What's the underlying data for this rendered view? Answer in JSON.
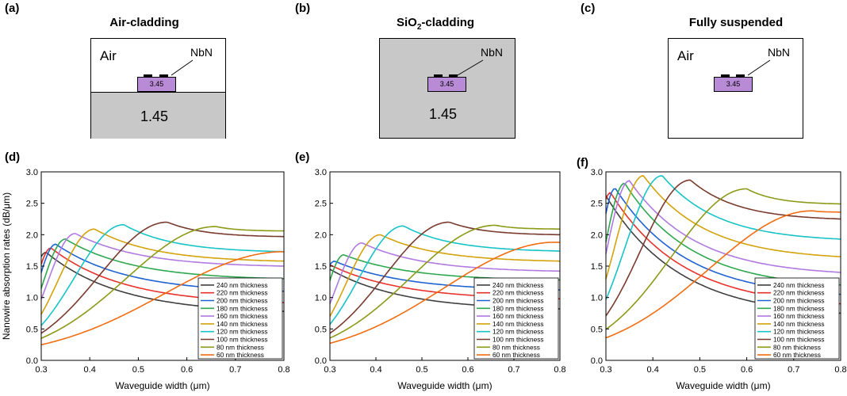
{
  "panels": {
    "a": {
      "label": "(a)",
      "title": "Air-cladding",
      "top_text": "Air",
      "nbn": "NbN",
      "core": "3.45",
      "substrate": "1.45"
    },
    "b": {
      "label": "(b)",
      "title_main": "SiO",
      "title_sub": "2",
      "title_rest": "-cladding",
      "nbn": "NbN",
      "core": "3.45",
      "substrate": "1.45"
    },
    "c": {
      "label": "(c)",
      "title": "Fully suspended",
      "top_text": "Air",
      "nbn": "NbN",
      "core": "3.45"
    },
    "d": {
      "label": "(d)"
    },
    "e": {
      "label": "(e)"
    },
    "f": {
      "label": "(f)"
    }
  },
  "colors": {
    "cladding_gray": "#c8c8c8",
    "core_purple": "#b98ad6",
    "nbn_black": "#000000"
  },
  "chart_data": [
    {
      "panel": "d",
      "type": "line",
      "xlabel": "Waveguide width (μm)",
      "ylabel": "Nanowire absorption rates (dB/μm)",
      "xlim": [
        0.3,
        0.8
      ],
      "ylim": [
        0,
        3.0
      ],
      "xticks": [
        "0.3",
        "0.4",
        "0.5",
        "0.6",
        "0.7",
        "0.8"
      ],
      "yticks": [
        "0.0",
        "0.5",
        "1.0",
        "1.5",
        "2.0",
        "2.5",
        "3.0"
      ],
      "legend": "bottom-right",
      "series": [
        {
          "name": "240 nm thickness",
          "color": "#404040",
          "peak_x": 0.31,
          "peak_y": 1.72,
          "end_y": 0.78
        },
        {
          "name": "220 nm thickness",
          "color": "#e8312a",
          "peak_x": 0.32,
          "peak_y": 1.79,
          "end_y": 0.92
        },
        {
          "name": "200 nm thickness",
          "color": "#1f63d1",
          "peak_x": 0.33,
          "peak_y": 1.85,
          "end_y": 1.1
        },
        {
          "name": "180 nm thickness",
          "color": "#2ea84f",
          "peak_x": 0.35,
          "peak_y": 1.93,
          "end_y": 1.3
        },
        {
          "name": "160 nm thickness",
          "color": "#b07ae0",
          "peak_x": 0.37,
          "peak_y": 2.02,
          "end_y": 1.5
        },
        {
          "name": "140 nm thickness",
          "color": "#d4a20b",
          "peak_x": 0.41,
          "peak_y": 2.09,
          "end_y": 1.58
        },
        {
          "name": "120 nm thickness",
          "color": "#17c3c7",
          "peak_x": 0.47,
          "peak_y": 2.16,
          "end_y": 1.73
        },
        {
          "name": "100 nm thickness",
          "color": "#7a3b2e",
          "peak_x": 0.56,
          "peak_y": 2.2,
          "end_y": 1.97
        },
        {
          "name": "80 nm thickness",
          "color": "#8c9a16",
          "peak_x": 0.66,
          "peak_y": 2.13,
          "end_y": 2.06
        },
        {
          "name": "60 nm thickness",
          "color": "#f26d12",
          "peak_x": 0.8,
          "peak_y": 1.73,
          "end_y": 1.73
        }
      ]
    },
    {
      "panel": "e",
      "type": "line",
      "xlabel": "Waveguide width (μm)",
      "ylabel": "",
      "xlim": [
        0.3,
        0.8
      ],
      "ylim": [
        0,
        3.0
      ],
      "xticks": [
        "0.3",
        "0.4",
        "0.5",
        "0.6",
        "0.7",
        "0.8"
      ],
      "yticks": [
        "0.0",
        "0.5",
        "1.0",
        "1.5",
        "2.0",
        "2.5",
        "3.0"
      ],
      "legend": "bottom-right",
      "series": [
        {
          "name": "240 nm thickness",
          "color": "#404040",
          "peak_x": 0.3,
          "peak_y": 1.45,
          "end_y": 0.82
        },
        {
          "name": "220 nm thickness",
          "color": "#e8312a",
          "peak_x": 0.3,
          "peak_y": 1.52,
          "end_y": 0.98
        },
        {
          "name": "200 nm thickness",
          "color": "#1f63d1",
          "peak_x": 0.31,
          "peak_y": 1.58,
          "end_y": 1.12
        },
        {
          "name": "180 nm thickness",
          "color": "#2ea84f",
          "peak_x": 0.33,
          "peak_y": 1.68,
          "end_y": 1.28
        },
        {
          "name": "160 nm thickness",
          "color": "#b07ae0",
          "peak_x": 0.37,
          "peak_y": 1.87,
          "end_y": 1.42
        },
        {
          "name": "140 nm thickness",
          "color": "#d4a20b",
          "peak_x": 0.41,
          "peak_y": 2.0,
          "end_y": 1.58
        },
        {
          "name": "120 nm thickness",
          "color": "#17c3c7",
          "peak_x": 0.46,
          "peak_y": 2.14,
          "end_y": 1.74
        },
        {
          "name": "100 nm thickness",
          "color": "#7a3b2e",
          "peak_x": 0.56,
          "peak_y": 2.2,
          "end_y": 2.0
        },
        {
          "name": "80 nm thickness",
          "color": "#8c9a16",
          "peak_x": 0.66,
          "peak_y": 2.15,
          "end_y": 2.09
        },
        {
          "name": "60 nm thickness",
          "color": "#f26d12",
          "peak_x": 0.79,
          "peak_y": 1.88,
          "end_y": 1.88
        }
      ]
    },
    {
      "panel": "f",
      "type": "line",
      "xlabel": "Waveguide width (μm)",
      "ylabel": "",
      "xlim": [
        0.3,
        0.8
      ],
      "ylim": [
        0,
        3.0
      ],
      "xticks": [
        "0.3",
        "0.4",
        "0.5",
        "0.6",
        "0.7",
        "0.8"
      ],
      "yticks": [
        "0.0",
        "0.5",
        "1.0",
        "1.5",
        "2.0",
        "2.5",
        "3.0"
      ],
      "legend": "bottom-right",
      "series": [
        {
          "name": "240 nm thickness",
          "color": "#404040",
          "peak_x": 0.3,
          "peak_y": 2.62,
          "end_y": 0.75
        },
        {
          "name": "220 nm thickness",
          "color": "#e8312a",
          "peak_x": 0.31,
          "peak_y": 2.67,
          "end_y": 0.9
        },
        {
          "name": "200 nm thickness",
          "color": "#1f63d1",
          "peak_x": 0.32,
          "peak_y": 2.74,
          "end_y": 1.05
        },
        {
          "name": "180 nm thickness",
          "color": "#2ea84f",
          "peak_x": 0.34,
          "peak_y": 2.82,
          "end_y": 1.2
        },
        {
          "name": "160 nm thickness",
          "color": "#b07ae0",
          "peak_x": 0.35,
          "peak_y": 2.86,
          "end_y": 1.4
        },
        {
          "name": "140 nm thickness",
          "color": "#d4a20b",
          "peak_x": 0.38,
          "peak_y": 2.94,
          "end_y": 1.65
        },
        {
          "name": "120 nm thickness",
          "color": "#17c3c7",
          "peak_x": 0.42,
          "peak_y": 2.94,
          "end_y": 1.93
        },
        {
          "name": "100 nm thickness",
          "color": "#7a3b2e",
          "peak_x": 0.48,
          "peak_y": 2.87,
          "end_y": 2.25
        },
        {
          "name": "80 nm thickness",
          "color": "#8c9a16",
          "peak_x": 0.6,
          "peak_y": 2.73,
          "end_y": 2.49
        },
        {
          "name": "60 nm thickness",
          "color": "#f26d12",
          "peak_x": 0.74,
          "peak_y": 2.38,
          "end_y": 2.36
        }
      ]
    }
  ]
}
